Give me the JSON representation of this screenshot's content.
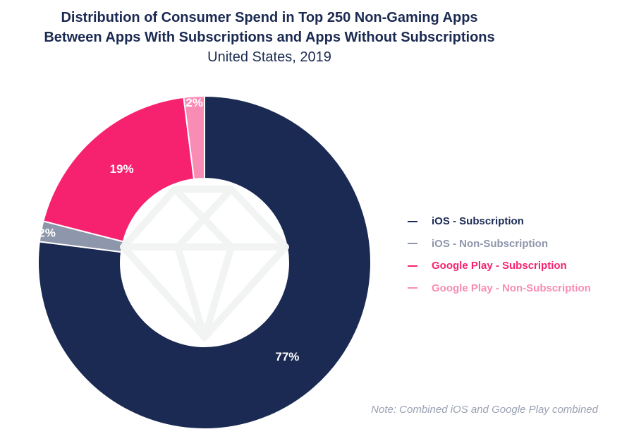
{
  "chart_data": {
    "type": "pie",
    "variant": "donut",
    "title": "Distribution of Consumer Spend in Top 250 Non-Gaming Apps",
    "title_line2": "Between Apps With Subscriptions and Apps Without Subscriptions",
    "subtitle": "United States, 2019",
    "slices": [
      {
        "name": "iOS - Subscription",
        "value": 77,
        "label": "77%",
        "color": "#1b2a52"
      },
      {
        "name": "iOS - Non-Subscription",
        "value": 2,
        "label": "2%",
        "color": "#8e96ab"
      },
      {
        "name": "Google Play - Subscription",
        "value": 19,
        "label": "19%",
        "color": "#f7226f"
      },
      {
        "name": "Google Play - Non-Subscription",
        "value": 2,
        "label": "2%",
        "color": "#f98cb5"
      }
    ],
    "legend_position": "right",
    "note": "Note: Combined iOS and Google Play combined"
  },
  "watermark_icon": "diamond-icon"
}
